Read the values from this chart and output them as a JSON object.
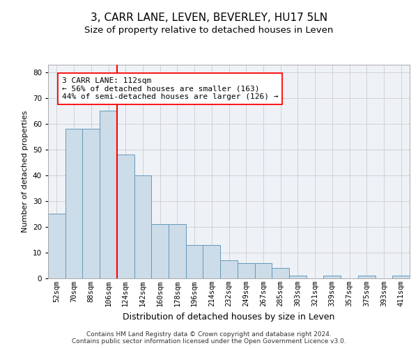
{
  "title": "3, CARR LANE, LEVEN, BEVERLEY, HU17 5LN",
  "subtitle": "Size of property relative to detached houses in Leven",
  "xlabel": "Distribution of detached houses by size in Leven",
  "ylabel": "Number of detached properties",
  "categories": [
    "52sqm",
    "70sqm",
    "88sqm",
    "106sqm",
    "124sqm",
    "142sqm",
    "160sqm",
    "178sqm",
    "196sqm",
    "214sqm",
    "232sqm",
    "249sqm",
    "267sqm",
    "285sqm",
    "303sqm",
    "321sqm",
    "339sqm",
    "357sqm",
    "375sqm",
    "393sqm",
    "411sqm"
  ],
  "values": [
    25,
    58,
    58,
    65,
    48,
    40,
    21,
    21,
    13,
    13,
    7,
    6,
    6,
    4,
    1,
    0,
    1,
    0,
    1,
    0,
    1
  ],
  "bar_color": "#ccdce8",
  "bar_edge_color": "#6699bb",
  "vline_x_index": 3,
  "vline_color": "red",
  "annotation_line1": "3 CARR LANE: 112sqm",
  "annotation_line2": "← 56% of detached houses are smaller (163)",
  "annotation_line3": "44% of semi-detached houses are larger (126) →",
  "annotation_box_color": "white",
  "annotation_box_edge_color": "red",
  "ylim": [
    0,
    83
  ],
  "yticks": [
    0,
    10,
    20,
    30,
    40,
    50,
    60,
    70,
    80
  ],
  "grid_color": "#cccccc",
  "background_color": "#eef2f7",
  "footer_text": "Contains HM Land Registry data © Crown copyright and database right 2024.\nContains public sector information licensed under the Open Government Licence v3.0.",
  "title_fontsize": 11,
  "subtitle_fontsize": 9.5,
  "xlabel_fontsize": 9,
  "ylabel_fontsize": 8,
  "tick_fontsize": 7.5,
  "annotation_fontsize": 8,
  "footer_fontsize": 6.5
}
